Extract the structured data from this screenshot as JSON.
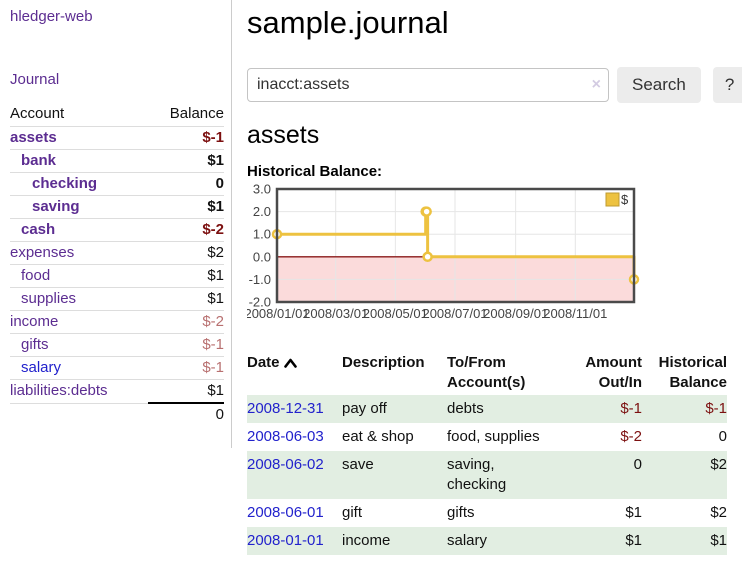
{
  "colors": {
    "link_purple": "#5c2d91",
    "link_blue": "#2222cc",
    "negative_strong": "#7c1010",
    "negative_soft": "#b87070",
    "row_green": "#e2eee2",
    "series_gold": "#EDC240",
    "negative_region_pink": "#fbdbdb",
    "zero_line_red": "#8b1a1a"
  },
  "sidebar": {
    "app_title": "hledger-web",
    "journal_link": "Journal",
    "accounts_table": {
      "headers": {
        "account": "Account",
        "balance": "Balance"
      },
      "rows": [
        {
          "account": "assets",
          "balance": "$-1",
          "depth": 0,
          "bold": true
        },
        {
          "account": "bank",
          "balance": "$1",
          "depth": 1,
          "bold": true
        },
        {
          "account": "checking",
          "balance": "0",
          "depth": 2,
          "bold": true
        },
        {
          "account": "saving",
          "balance": "$1",
          "depth": 2,
          "bold": true
        },
        {
          "account": "cash",
          "balance": "$-2",
          "depth": 1,
          "bold": true
        },
        {
          "account": "expenses",
          "balance": "$2",
          "depth": 0,
          "bold": false
        },
        {
          "account": "food",
          "balance": "$1",
          "depth": 1,
          "bold": false
        },
        {
          "account": "supplies",
          "balance": "$1",
          "depth": 1,
          "bold": false
        },
        {
          "account": "income",
          "balance": "$-2",
          "depth": 0,
          "bold": false
        },
        {
          "account": "gifts",
          "balance": "$-1",
          "depth": 1,
          "bold": false
        },
        {
          "account": "salary",
          "balance": "$-1",
          "depth": 1,
          "bold": false,
          "link_color": "blue"
        },
        {
          "account": "liabilities:debts",
          "balance": "$1",
          "depth": 0,
          "bold": false
        }
      ],
      "total": "0"
    }
  },
  "header": {
    "title": "sample.journal"
  },
  "search": {
    "value": "inacct:assets",
    "clear_icon": "×",
    "button_label": "Search",
    "help_label": "?"
  },
  "main": {
    "account_heading": "assets",
    "chart_title": "Historical Balance:"
  },
  "chart_data": {
    "type": "line",
    "style": "step-after",
    "title": "Historical Balance",
    "series": [
      {
        "name": "$",
        "color": "#EDC240",
        "points": [
          [
            "2008-01-01",
            1.0
          ],
          [
            "2008-06-01",
            2.0
          ],
          [
            "2008-06-02",
            2.0
          ],
          [
            "2008-06-03",
            0.0
          ],
          [
            "2008-12-31",
            -1.0
          ]
        ]
      }
    ],
    "x_range": [
      "2008-01-01",
      "2008-12-31"
    ],
    "x_ticks": [
      "2008/01/01",
      "2008/03/01",
      "2008/05/01",
      "2008/07/01",
      "2008/09/01",
      "2008/11/01"
    ],
    "y_ticks": [
      "3.0",
      "2.0",
      "1.0",
      "0.0",
      "-1.0",
      "-2.0"
    ],
    "ylim": [
      -2.0,
      3.0
    ],
    "grid": true,
    "legend": {
      "label": "$",
      "position": "top-right"
    }
  },
  "register": {
    "headers": {
      "date": "Date",
      "sort_icon": "chevron-up",
      "description": "Description",
      "accounts": "To/From Account(s)",
      "amount": "Amount Out/In",
      "balance": "Historical Balance"
    },
    "rows": [
      {
        "date": "2008-12-31",
        "description": "pay off",
        "accounts": "debts",
        "amount": "$-1",
        "balance": "$-1"
      },
      {
        "date": "2008-06-03",
        "description": "eat & shop",
        "accounts": "food, supplies",
        "amount": "$-2",
        "balance": "0"
      },
      {
        "date": "2008-06-02",
        "description": "save",
        "accounts": "saving, checking",
        "amount": "0",
        "balance": "$2"
      },
      {
        "date": "2008-06-01",
        "description": "gift",
        "accounts": "gifts",
        "amount": "$1",
        "balance": "$2"
      },
      {
        "date": "2008-01-01",
        "description": "income",
        "accounts": "salary",
        "amount": "$1",
        "balance": "$1"
      }
    ]
  }
}
